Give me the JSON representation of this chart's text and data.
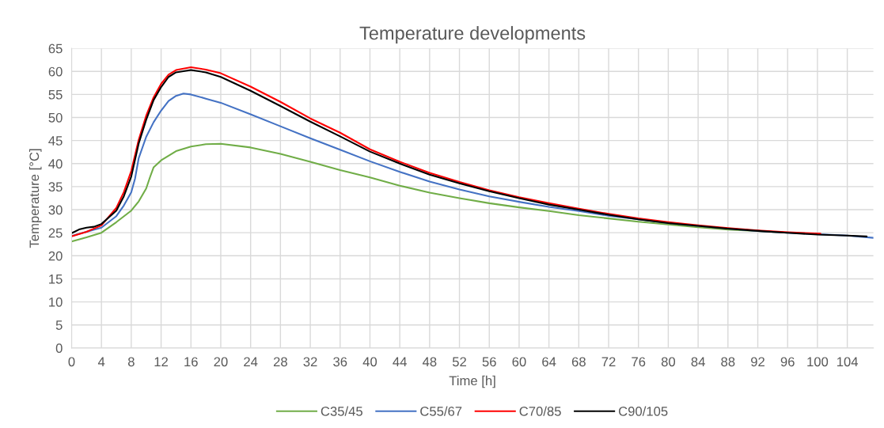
{
  "chart_data": {
    "type": "line",
    "title": "Temperature developments",
    "xlabel": "Time [h]",
    "ylabel": "Temperature [°C]",
    "xlim": [
      0,
      107.5
    ],
    "xticks": [
      0,
      4,
      8,
      12,
      16,
      20,
      24,
      28,
      32,
      36,
      40,
      44,
      48,
      52,
      56,
      60,
      64,
      68,
      72,
      76,
      80,
      84,
      88,
      92,
      96,
      100,
      104
    ],
    "ylim": [
      0,
      65
    ],
    "yticks": [
      0,
      5,
      10,
      15,
      20,
      25,
      30,
      35,
      40,
      45,
      50,
      55,
      60,
      65
    ],
    "grid": true,
    "legend": "bottom",
    "marker": "none",
    "line_style": "solid",
    "series": [
      {
        "name": "C35/45",
        "color": "#70ad47",
        "x": [
          0,
          2,
          4,
          6,
          8,
          9,
          10,
          10.5,
          11,
          12,
          14,
          16,
          18,
          20,
          24,
          28,
          32,
          36,
          40,
          44,
          48,
          52,
          56,
          60,
          64,
          68,
          72,
          76,
          80,
          84,
          88,
          92,
          96
        ],
        "values": [
          23.1,
          24.0,
          25.0,
          27.3,
          29.8,
          31.8,
          34.6,
          37.0,
          39.2,
          40.7,
          42.7,
          43.7,
          44.2,
          44.3,
          43.5,
          42.1,
          40.4,
          38.6,
          37.0,
          35.2,
          33.7,
          32.5,
          31.4,
          30.5,
          29.7,
          28.8,
          28.1,
          27.4,
          26.8,
          26.2,
          25.7,
          25.4,
          25.0
        ]
      },
      {
        "name": "C55/67",
        "color": "#4472c4",
        "x": [
          0,
          2,
          4,
          6,
          7,
          8,
          8.5,
          9,
          10,
          11,
          12,
          13,
          14,
          15,
          16,
          18,
          20,
          24,
          28,
          32,
          36,
          40,
          44,
          48,
          52,
          56,
          60,
          64,
          68,
          72,
          76,
          80,
          84,
          88,
          92,
          96,
          100,
          104,
          107.5
        ],
        "values": [
          24.3,
          25.2,
          26.1,
          28.6,
          30.9,
          33.8,
          36.7,
          41.2,
          45.8,
          49.0,
          51.5,
          53.6,
          54.7,
          55.2,
          55.0,
          54.1,
          53.2,
          50.7,
          48.1,
          45.5,
          43.0,
          40.5,
          38.2,
          36.1,
          34.4,
          32.9,
          31.7,
          30.6,
          29.7,
          28.7,
          27.9,
          27.1,
          26.5,
          25.9,
          25.4,
          25.0,
          24.7,
          24.4,
          23.9
        ]
      },
      {
        "name": "C70/85",
        "color": "#ff0000",
        "x": [
          0,
          2,
          4,
          6,
          7,
          8,
          9,
          10,
          11,
          12,
          13,
          14,
          16,
          18,
          20,
          24,
          28,
          32,
          36,
          40,
          44,
          48,
          52,
          56,
          60,
          64,
          68,
          72,
          76,
          80,
          84,
          88,
          92,
          96,
          100.4
        ],
        "values": [
          24.2,
          25.2,
          26.6,
          30.4,
          33.8,
          38.4,
          45.2,
          50.4,
          54.4,
          57.3,
          59.3,
          60.3,
          60.9,
          60.4,
          59.6,
          56.7,
          53.4,
          49.8,
          46.7,
          43.1,
          40.4,
          38.0,
          36.0,
          34.2,
          32.7,
          31.4,
          30.2,
          29.1,
          28.1,
          27.3,
          26.6,
          26.0,
          25.5,
          25.1,
          24.8
        ]
      },
      {
        "name": "C90/105",
        "color": "#000000",
        "x": [
          0,
          1,
          2,
          3,
          4,
          6,
          7,
          8,
          9,
          10,
          11,
          12,
          13,
          14,
          16,
          18,
          20,
          24,
          28,
          32,
          36,
          40,
          44,
          48,
          52,
          56,
          60,
          64,
          68,
          72,
          76,
          80,
          84,
          88,
          92,
          96,
          100,
          104,
          106.6
        ],
        "values": [
          24.9,
          25.7,
          26.1,
          26.3,
          26.9,
          29.8,
          32.9,
          37.2,
          44.4,
          49.5,
          53.8,
          56.6,
          58.8,
          59.8,
          60.3,
          59.8,
          58.8,
          55.8,
          52.5,
          49.1,
          45.9,
          42.6,
          40.0,
          37.6,
          35.7,
          34.0,
          32.5,
          31.1,
          30.0,
          28.9,
          27.9,
          27.1,
          26.5,
          25.9,
          25.4,
          25.0,
          24.6,
          24.4,
          24.2
        ]
      }
    ]
  }
}
